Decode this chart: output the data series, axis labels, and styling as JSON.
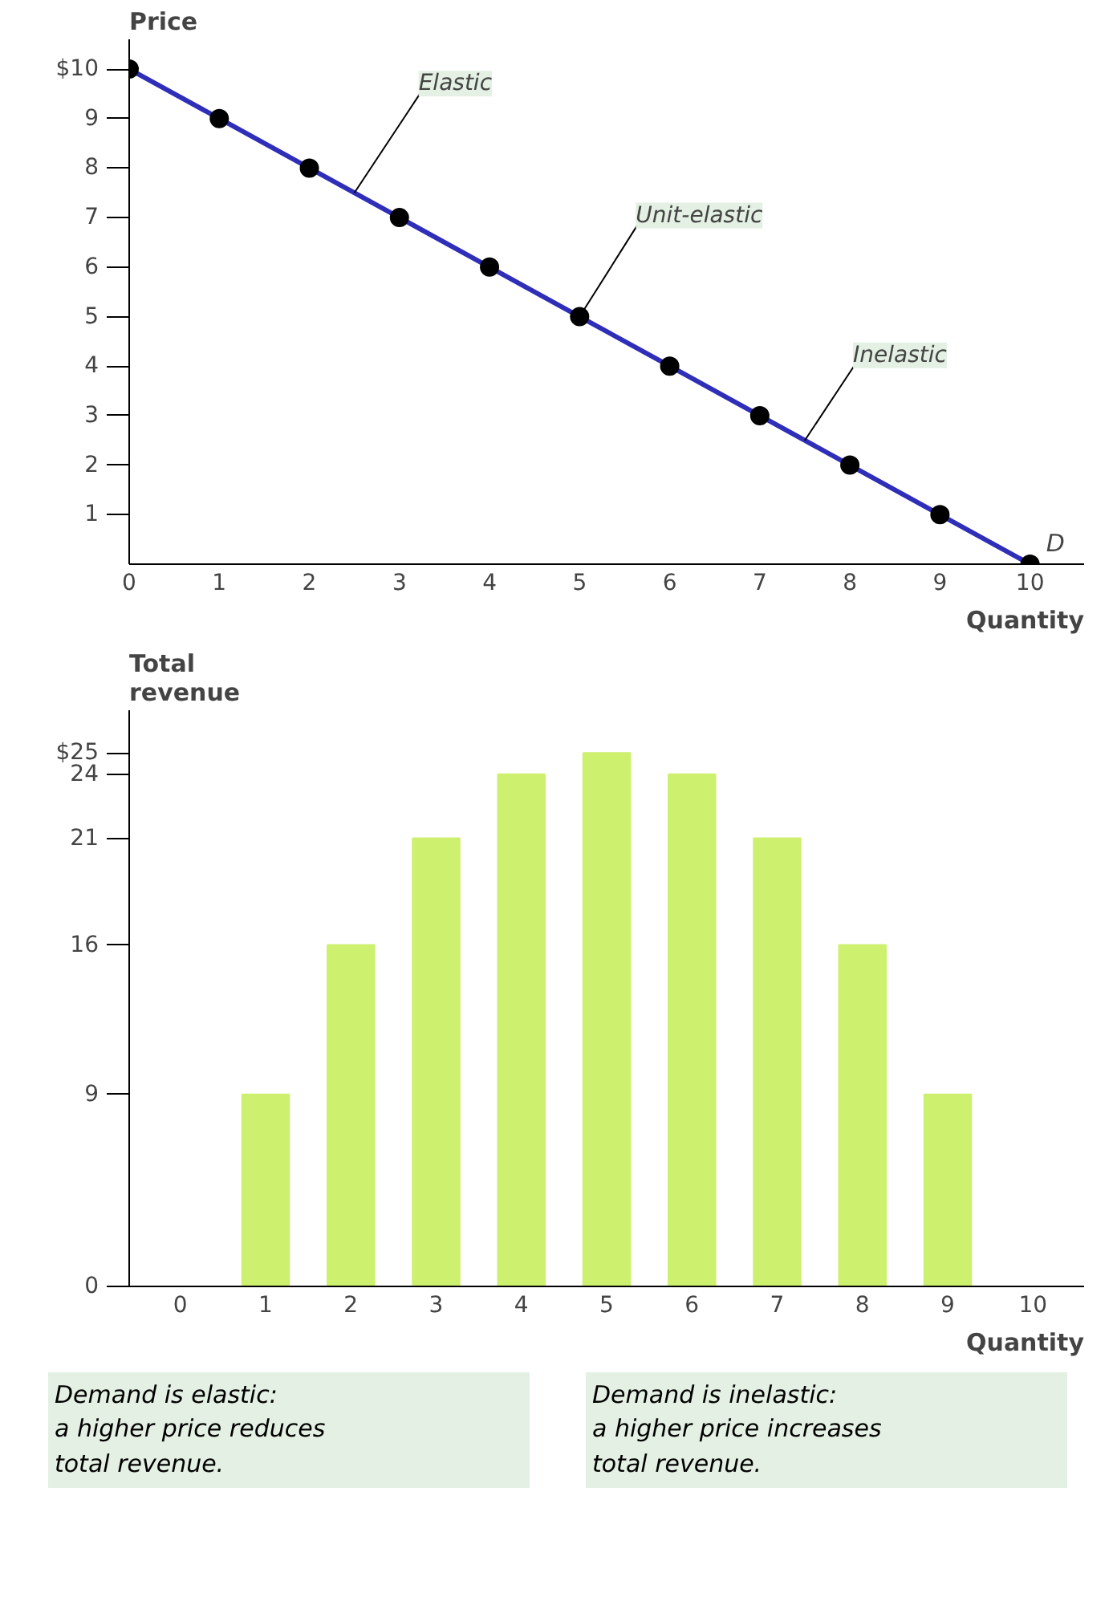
{
  "chart_data": [
    {
      "type": "line",
      "ylabel": "Price",
      "xlabel": "Quantity",
      "x": [
        0,
        1,
        2,
        3,
        4,
        5,
        6,
        7,
        8,
        9,
        10
      ],
      "series": [
        {
          "name": "D",
          "color": "#2e2eb8",
          "values": [
            10,
            9,
            8,
            7,
            6,
            5,
            4,
            3,
            2,
            1,
            0
          ]
        }
      ],
      "marker": "circle",
      "line_style": "solid",
      "grid": false,
      "xlim": [
        0,
        10.6
      ],
      "ylim": [
        0,
        10.6
      ],
      "xticks": [
        0,
        1,
        2,
        3,
        4,
        5,
        6,
        7,
        8,
        9,
        10
      ],
      "yticks": [
        1,
        2,
        3,
        4,
        5,
        6,
        7,
        8,
        9,
        {
          "value": 10,
          "label": "$10"
        }
      ],
      "annotations": [
        {
          "text": "Elastic",
          "x": 2.5,
          "y": 7.5
        },
        {
          "text": "Unit-elastic",
          "x": 5,
          "y": 5
        },
        {
          "text": "Inelastic",
          "x": 7.5,
          "y": 2.5
        }
      ]
    },
    {
      "type": "bar",
      "ylabel": "Total\nrevenue",
      "xlabel": "Quantity",
      "categories": [
        "0",
        "1",
        "2",
        "3",
        "4",
        "5",
        "6",
        "7",
        "8",
        "9",
        "10"
      ],
      "values": [
        0,
        9,
        16,
        21,
        24,
        25,
        24,
        21,
        16,
        9,
        0
      ],
      "color": "#cdf06e",
      "grid": false,
      "ylim": [
        0,
        27
      ],
      "yticks": [
        0,
        9,
        16,
        21,
        24,
        {
          "value": 25,
          "label": "$25"
        }
      ],
      "annotations": [
        "Demand is elastic:\na higher price reduces\ntotal revenue.",
        "Demand is inelastic:\na higher price increases\ntotal revenue."
      ]
    }
  ]
}
